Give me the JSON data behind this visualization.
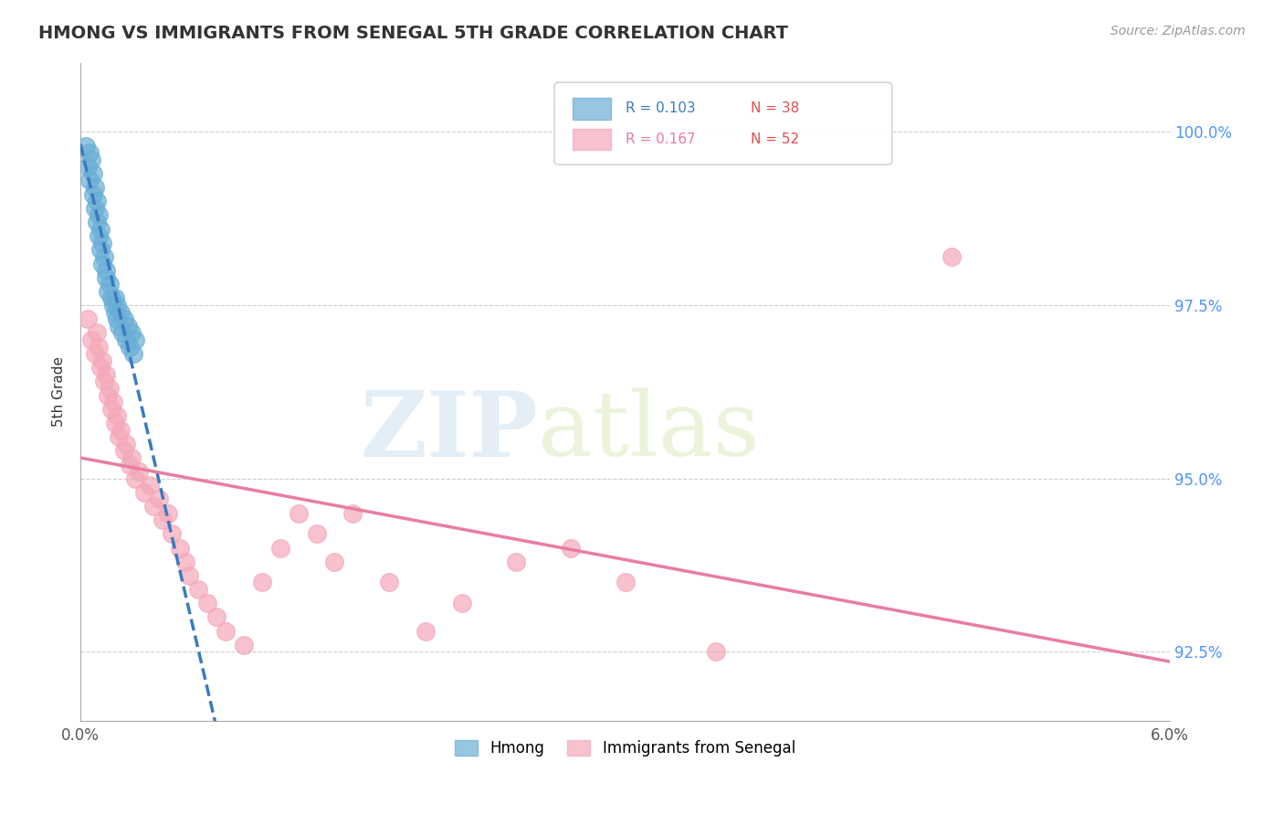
{
  "title": "HMONG VS IMMIGRANTS FROM SENEGAL 5TH GRADE CORRELATION CHART",
  "source": "Source: ZipAtlas.com",
  "ylabel": "5th Grade",
  "xmin": 0.0,
  "xmax": 6.0,
  "ymin": 91.5,
  "ymax": 101.0,
  "yticks": [
    92.5,
    95.0,
    97.5,
    100.0
  ],
  "ytick_labels": [
    "92.5%",
    "95.0%",
    "97.5%",
    "100.0%"
  ],
  "hmong_R": 0.103,
  "hmong_N": 38,
  "senegal_R": 0.167,
  "senegal_N": 52,
  "hmong_color": "#6aaed6",
  "senegal_color": "#f4a8b8",
  "hmong_line_color": "#3a7bbf",
  "senegal_line_color": "#e87da0",
  "legend_label_hmong": "Hmong",
  "legend_label_senegal": "Immigrants from Senegal",
  "hmong_x": [
    0.03,
    0.04,
    0.05,
    0.05,
    0.06,
    0.07,
    0.07,
    0.08,
    0.08,
    0.09,
    0.09,
    0.1,
    0.1,
    0.11,
    0.11,
    0.12,
    0.12,
    0.13,
    0.14,
    0.14,
    0.15,
    0.16,
    0.17,
    0.18,
    0.19,
    0.19,
    0.2,
    0.2,
    0.21,
    0.22,
    0.23,
    0.24,
    0.25,
    0.26,
    0.27,
    0.28,
    0.29,
    0.3
  ],
  "hmong_y": [
    99.8,
    99.5,
    99.7,
    99.3,
    99.6,
    99.4,
    99.1,
    99.2,
    98.9,
    99.0,
    98.7,
    98.8,
    98.5,
    98.6,
    98.3,
    98.4,
    98.1,
    98.2,
    97.9,
    98.0,
    97.7,
    97.8,
    97.6,
    97.5,
    97.4,
    97.6,
    97.3,
    97.5,
    97.2,
    97.4,
    97.1,
    97.3,
    97.0,
    97.2,
    96.9,
    97.1,
    96.8,
    97.0
  ],
  "senegal_x": [
    0.04,
    0.06,
    0.08,
    0.09,
    0.1,
    0.11,
    0.12,
    0.13,
    0.14,
    0.15,
    0.16,
    0.17,
    0.18,
    0.19,
    0.2,
    0.21,
    0.22,
    0.24,
    0.25,
    0.27,
    0.28,
    0.3,
    0.32,
    0.35,
    0.38,
    0.4,
    0.43,
    0.45,
    0.48,
    0.5,
    0.55,
    0.58,
    0.6,
    0.65,
    0.7,
    0.75,
    0.8,
    0.9,
    1.0,
    1.1,
    1.2,
    1.3,
    1.4,
    1.5,
    1.7,
    1.9,
    2.1,
    2.4,
    2.7,
    3.0,
    3.5,
    4.8
  ],
  "senegal_y": [
    97.3,
    97.0,
    96.8,
    97.1,
    96.9,
    96.6,
    96.7,
    96.4,
    96.5,
    96.2,
    96.3,
    96.0,
    96.1,
    95.8,
    95.9,
    95.6,
    95.7,
    95.4,
    95.5,
    95.2,
    95.3,
    95.0,
    95.1,
    94.8,
    94.9,
    94.6,
    94.7,
    94.4,
    94.5,
    94.2,
    94.0,
    93.8,
    93.6,
    93.4,
    93.2,
    93.0,
    92.8,
    92.6,
    93.5,
    94.0,
    94.5,
    94.2,
    93.8,
    94.5,
    93.5,
    92.8,
    93.2,
    93.8,
    94.0,
    93.5,
    92.5,
    98.2
  ]
}
